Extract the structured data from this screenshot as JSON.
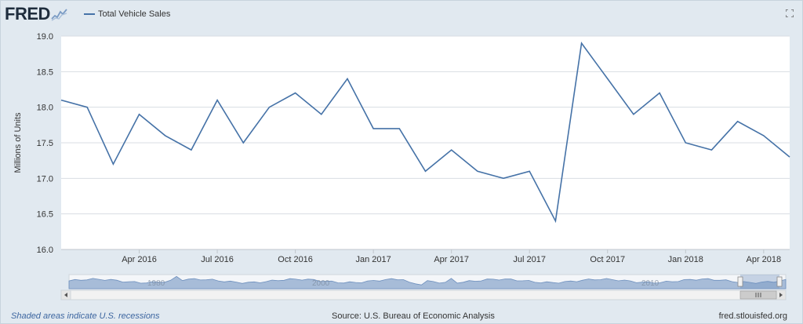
{
  "header": {
    "logo_text": "FRED",
    "legend_label": "Total Vehicle Sales",
    "series_color": "#4572a7"
  },
  "chart_data": {
    "type": "line",
    "ylabel": "Millions of Units",
    "ylim": [
      16.0,
      19.0
    ],
    "yticks": [
      "16.0",
      "16.5",
      "17.0",
      "17.5",
      "18.0",
      "18.5",
      "19.0"
    ],
    "xtick_labels": [
      "Apr 2016",
      "Jul 2016",
      "Oct 2016",
      "Jan 2017",
      "Apr 2017",
      "Jul 2017",
      "Oct 2017",
      "Jan 2018",
      "Apr 2018"
    ],
    "series": [
      {
        "name": "Total Vehicle Sales",
        "x": [
          "2016-01",
          "2016-02",
          "2016-03",
          "2016-04",
          "2016-05",
          "2016-06",
          "2016-07",
          "2016-08",
          "2016-09",
          "2016-10",
          "2016-11",
          "2016-12",
          "2017-01",
          "2017-02",
          "2017-03",
          "2017-04",
          "2017-05",
          "2017-06",
          "2017-07",
          "2017-08",
          "2017-09",
          "2017-10",
          "2017-11",
          "2017-12",
          "2018-01",
          "2018-02",
          "2018-03",
          "2018-04",
          "2018-05"
        ],
        "values": [
          18.1,
          18.0,
          17.2,
          17.9,
          17.6,
          17.4,
          18.1,
          17.5,
          18.0,
          18.2,
          17.9,
          18.4,
          17.7,
          17.7,
          17.1,
          17.4,
          17.1,
          17.0,
          17.1,
          16.4,
          18.9,
          18.4,
          17.9,
          18.2,
          17.5,
          17.4,
          17.8,
          17.6,
          17.3
        ]
      }
    ],
    "grid": true,
    "navigator": {
      "labels": [
        "1980",
        "2000",
        "2010"
      ]
    }
  },
  "footer": {
    "recessions_note": "Shaded areas indicate U.S. recessions",
    "source": "Source: U.S. Bureau of Economic Analysis",
    "site": "fred.stlouisfed.org"
  }
}
